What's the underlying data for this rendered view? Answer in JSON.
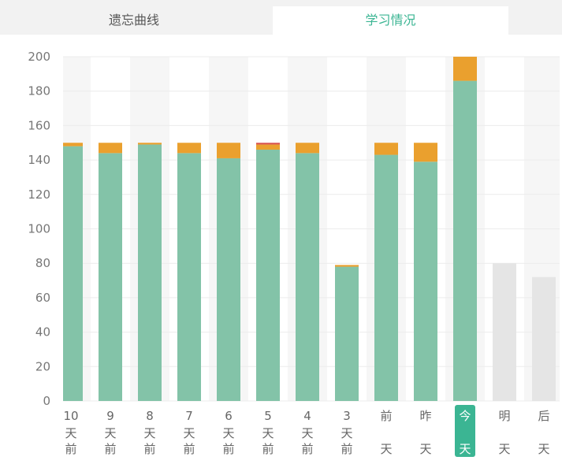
{
  "tabs": [
    {
      "label": "遗忘曲线",
      "active": false
    },
    {
      "label": "学习情况",
      "active": true
    }
  ],
  "colors": {
    "green": "#83c3a8",
    "orange": "#eaa02e",
    "red": "#d9534f",
    "future": "#e5e5e5",
    "band": "#f6f6f6",
    "accent": "#3bb593"
  },
  "chart_data": {
    "type": "bar",
    "stacked": true,
    "ylim": [
      0,
      200
    ],
    "yticks": [
      0,
      20,
      40,
      60,
      80,
      100,
      120,
      140,
      160,
      180,
      200
    ],
    "grid": true,
    "categories": [
      [
        "10",
        "天",
        "前"
      ],
      [
        "9",
        "天",
        "前"
      ],
      [
        "8",
        "天",
        "前"
      ],
      [
        "7",
        "天",
        "前"
      ],
      [
        "6",
        "天",
        "前"
      ],
      [
        "5",
        "天",
        "前"
      ],
      [
        "4",
        "天",
        "前"
      ],
      [
        "3",
        "天",
        "前"
      ],
      [
        "前",
        "",
        "天"
      ],
      [
        "昨",
        "",
        "天"
      ],
      [
        "今",
        "",
        "天"
      ],
      [
        "明",
        "",
        "天"
      ],
      [
        "后",
        "",
        "天"
      ]
    ],
    "highlight_index": 10,
    "future_indices": [
      11,
      12
    ],
    "series": [
      {
        "color": "green",
        "values": [
          148,
          144,
          149,
          144,
          141,
          146,
          144,
          78,
          143,
          139,
          186,
          0,
          0
        ]
      },
      {
        "color": "orange",
        "values": [
          2,
          6,
          1,
          6,
          9,
          3,
          6,
          1,
          7,
          11,
          14,
          0,
          0
        ]
      },
      {
        "color": "red",
        "values": [
          0,
          0,
          0,
          0,
          0,
          1,
          0,
          0,
          0,
          0,
          0,
          0,
          0
        ]
      },
      {
        "color": "future",
        "values": [
          0,
          0,
          0,
          0,
          0,
          0,
          0,
          0,
          0,
          0,
          0,
          80,
          72
        ]
      }
    ]
  }
}
